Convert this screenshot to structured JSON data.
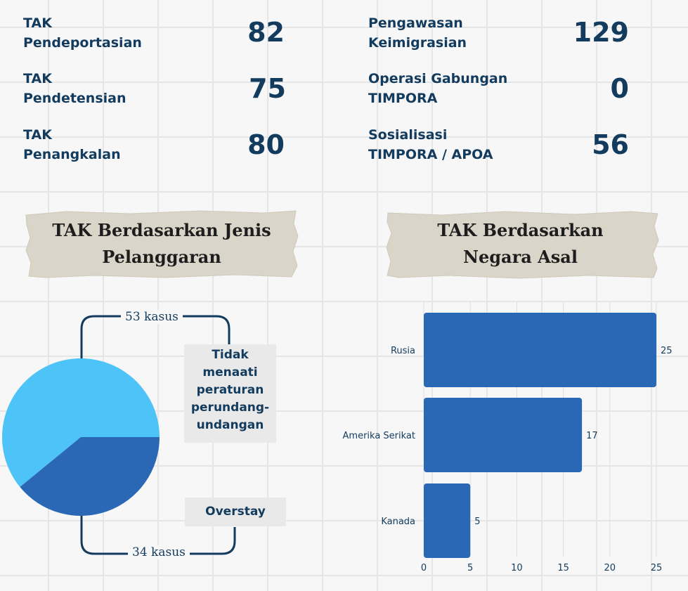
{
  "stats_left": [
    {
      "label_lines": [
        "TAK",
        "Pendeportasian"
      ],
      "value": "82"
    },
    {
      "label_lines": [
        "TAK",
        "Pendetensian"
      ],
      "value": "75"
    },
    {
      "label_lines": [
        "TAK",
        "Penangkalan"
      ],
      "value": "80"
    }
  ],
  "stats_right": [
    {
      "label_lines": [
        "Pengawasan",
        "Keimigrasian"
      ],
      "value": "129"
    },
    {
      "label_lines": [
        "Operasi Gabungan",
        "TIMPORA"
      ],
      "value": "0"
    },
    {
      "label_lines": [
        "Sosialisasi",
        "TIMPORA / APOA"
      ],
      "value": "56"
    }
  ],
  "pie_section": {
    "title_lines": [
      "TAK  Berdasarkan  Jenis",
      "Pelanggaran"
    ],
    "label_top_lines": [
      "Tidak menaati",
      "peraturan",
      "perundang-",
      "undangan"
    ],
    "label_bottom": "Overstay",
    "count_top": "53 kasus",
    "count_bottom": "34 kasus"
  },
  "bar_section": {
    "title_lines": [
      "TAK Berdasarkan",
      "Negara Asal"
    ]
  },
  "chart_data": [
    {
      "type": "pie",
      "categories": [
        "Tidak menaati peraturan perundang-undangan",
        "Overstay"
      ],
      "values": [
        53,
        34
      ],
      "colors": [
        "#4dc3f7",
        "#2a68b6"
      ]
    },
    {
      "type": "bar",
      "orientation": "horizontal",
      "categories": [
        "Rusia",
        "Amerika Serikat",
        "Kanada"
      ],
      "values": [
        25,
        17,
        5
      ],
      "xlim": [
        0,
        25
      ],
      "xticks": [
        0,
        5,
        10,
        15,
        20,
        25
      ],
      "grid": true,
      "color": "#2a68b6"
    }
  ]
}
